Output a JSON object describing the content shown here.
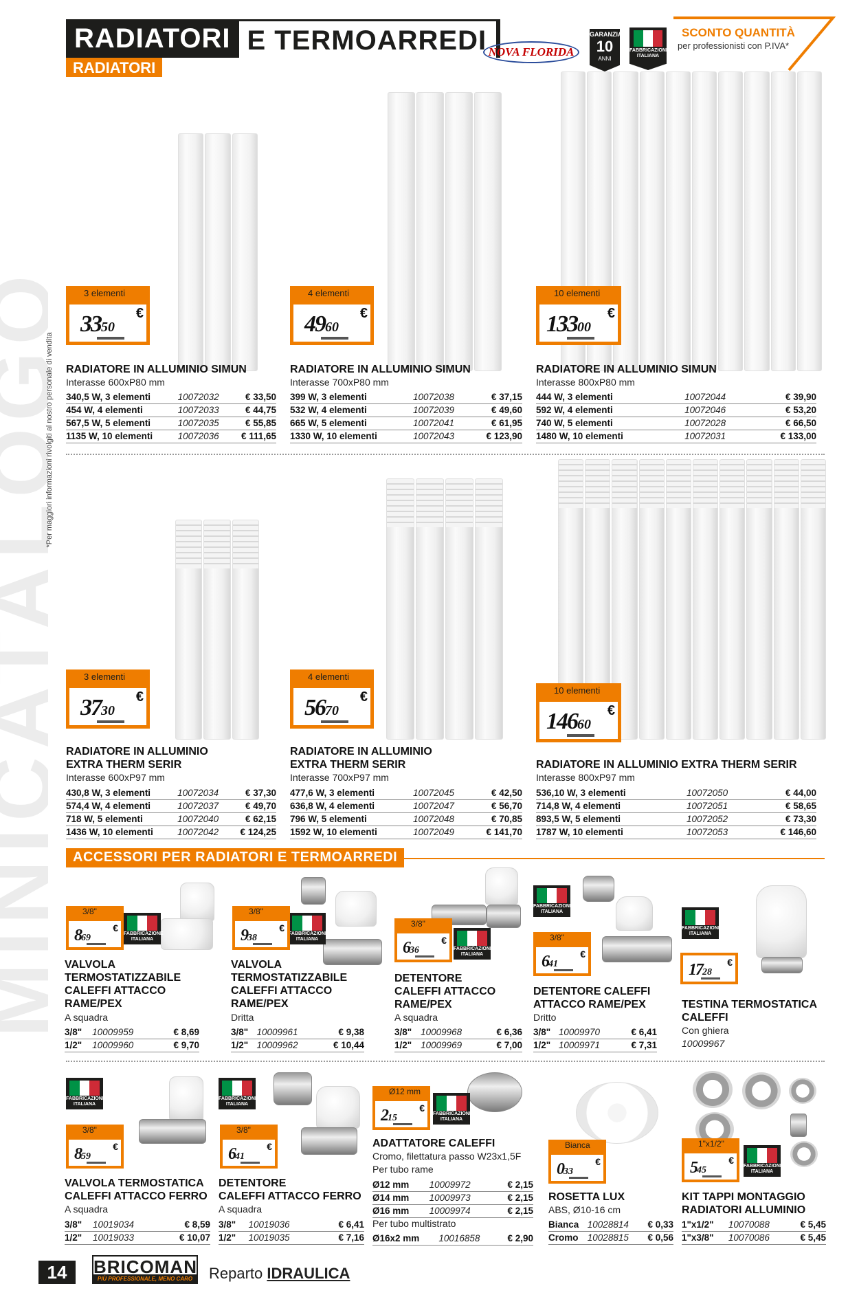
{
  "header": {
    "title_a": "RADIATORI",
    "title_b": "E TERMOARREDI",
    "subtitle": "RADIATORI",
    "brand": "NOVA FLORIDA",
    "guarantee": {
      "top": "GARANZIA",
      "num": "10",
      "bottom": "ANNI"
    },
    "made_in": "FABBRICAZIONE ITALIANA",
    "discount_title": "SCONTO QUANTITÀ",
    "discount_note": "per professionisti con P.IVA*"
  },
  "side_note": "*Per maggiori informazioni rivolgiti al nostro personale di vendita",
  "watermark": "MINICATALOGO",
  "radiators": [
    {
      "tag_label": "3 elementi",
      "price_int": "33",
      "price_dec": "50",
      "title": [
        "RADIATORE IN ALLUMINIO SIMUN"
      ],
      "sub": "Interasse 600xP80 mm",
      "rows": [
        [
          "340,5 W, 3 elementi",
          "10072032",
          "€ 33,50"
        ],
        [
          "454 W, 4 elementi",
          "10072033",
          "€ 44,75"
        ],
        [
          "567,5 W, 5 elementi",
          "10072035",
          "€ 55,85"
        ],
        [
          "1135 W, 10 elementi",
          "10072036",
          "€ 111,65"
        ]
      ]
    },
    {
      "tag_label": "4 elementi",
      "price_int": "49",
      "price_dec": "60",
      "title": [
        "RADIATORE IN ALLUMINIO SIMUN"
      ],
      "sub": "Interasse 700xP80 mm",
      "rows": [
        [
          "399 W, 3 elementi",
          "10072038",
          "€ 37,15"
        ],
        [
          "532 W, 4 elementi",
          "10072039",
          "€ 49,60"
        ],
        [
          "665 W, 5 elementi",
          "10072041",
          "€ 61,95"
        ],
        [
          "1330 W, 10 elementi",
          "10072043",
          "€ 123,90"
        ]
      ]
    },
    {
      "tag_label": "10 elementi",
      "price_int": "133",
      "price_dec": "00",
      "title": [
        "RADIATORE IN ALLUMINIO SIMUN"
      ],
      "sub": "Interasse 800xP80 mm",
      "rows": [
        [
          "444 W, 3 elementi",
          "10072044",
          "€ 39,90"
        ],
        [
          "592 W, 4 elementi",
          "10072046",
          "€ 53,20"
        ],
        [
          "740 W, 5 elementi",
          "10072028",
          "€ 66,50"
        ],
        [
          "1480 W, 10 elementi",
          "10072031",
          "€ 133,00"
        ]
      ]
    },
    {
      "tag_label": "3 elementi",
      "price_int": "37",
      "price_dec": "30",
      "title": [
        "RADIATORE IN ALLUMINIO",
        "EXTRA THERM SERIR"
      ],
      "sub": "Interasse 600xP97 mm",
      "rows": [
        [
          "430,8 W, 3 elementi",
          "10072034",
          "€ 37,30"
        ],
        [
          "574,4 W, 4 elementi",
          "10072037",
          "€ 49,70"
        ],
        [
          "718 W, 5 elementi",
          "10072040",
          "€ 62,15"
        ],
        [
          "1436 W, 10 elementi",
          "10072042",
          "€ 124,25"
        ]
      ]
    },
    {
      "tag_label": "4 elementi",
      "price_int": "56",
      "price_dec": "70",
      "title": [
        "RADIATORE IN ALLUMINIO",
        "EXTRA THERM SERIR"
      ],
      "sub": "Interasse 700xP97 mm",
      "rows": [
        [
          "477,6 W, 3 elementi",
          "10072045",
          "€ 42,50"
        ],
        [
          "636,8 W, 4 elementi",
          "10072047",
          "€ 56,70"
        ],
        [
          "796 W, 5 elementi",
          "10072048",
          "€ 70,85"
        ],
        [
          "1592 W, 10 elementi",
          "10072049",
          "€ 141,70"
        ]
      ]
    },
    {
      "tag_label": "10 elementi",
      "price_int": "146",
      "price_dec": "60",
      "title": [
        "RADIATORE IN ALLUMINIO EXTRA THERM SERIR"
      ],
      "sub": "Interasse 800xP97 mm",
      "rows": [
        [
          "536,10 W, 3 elementi",
          "10072050",
          "€ 44,00"
        ],
        [
          "714,8 W, 4 elementi",
          "10072051",
          "€ 58,65"
        ],
        [
          "893,5 W, 5 elementi",
          "10072052",
          "€ 73,30"
        ],
        [
          "1787 W, 10 elementi",
          "10072053",
          "€ 146,60"
        ]
      ]
    }
  ],
  "accessories_title": "ACCESSORI PER RADIATORI E TERMOARREDI",
  "accessories": [
    {
      "tag_label": "3/8\"",
      "price_int": "8",
      "price_dec": "69",
      "title": [
        "VALVOLA",
        "TERMOSTATIZZABILE",
        "CALEFFI ATTACCO",
        "RAME/PEX"
      ],
      "sub": [
        "A squadra"
      ],
      "rows": [
        [
          "3/8\"",
          "10009959",
          "€ 8,69"
        ],
        [
          "1/2\"",
          "10009960",
          "€ 9,70"
        ]
      ]
    },
    {
      "tag_label": "3/8\"",
      "price_int": "9",
      "price_dec": "38",
      "title": [
        "VALVOLA",
        "TERMOSTATIZZABILE",
        "CALEFFI ATTACCO",
        "RAME/PEX"
      ],
      "sub": [
        "Dritta"
      ],
      "rows": [
        [
          "3/8\"",
          "10009961",
          "€ 9,38"
        ],
        [
          "1/2\"",
          "10009962",
          "€ 10,44"
        ]
      ]
    },
    {
      "tag_label": "3/8\"",
      "price_int": "6",
      "price_dec": "36",
      "title": [
        "DETENTORE",
        "CALEFFI ATTACCO",
        "RAME/PEX"
      ],
      "sub": [
        "A squadra"
      ],
      "rows": [
        [
          "3/8\"",
          "10009968",
          "€ 6,36"
        ],
        [
          "1/2\"",
          "10009969",
          "€ 7,00"
        ]
      ]
    },
    {
      "tag_label": "3/8\"",
      "price_int": "6",
      "price_dec": "41",
      "title": [
        "DETENTORE CALEFFI",
        "ATTACCO RAME/PEX"
      ],
      "sub": [
        "Dritto"
      ],
      "rows": [
        [
          "3/8\"",
          "10009970",
          "€ 6,41"
        ],
        [
          "1/2\"",
          "10009971",
          "€ 7,31"
        ]
      ]
    },
    {
      "tag_label": "",
      "price_int": "17",
      "price_dec": "28",
      "title": [
        "TESTINA TERMOSTATICA",
        "CALEFFI"
      ],
      "sub": [
        "Con ghiera",
        "10009967"
      ],
      "rows": []
    },
    {
      "tag_label": "3/8\"",
      "price_int": "8",
      "price_dec": "59",
      "title": [
        "VALVOLA TERMOSTATICA",
        "CALEFFI ATTACCO FERRO"
      ],
      "sub": [
        "A squadra"
      ],
      "rows": [
        [
          "3/8\"",
          "10019034",
          "€ 8,59"
        ],
        [
          "1/2\"",
          "10019033",
          "€ 10,07"
        ]
      ]
    },
    {
      "tag_label": "3/8\"",
      "price_int": "6",
      "price_dec": "41",
      "title": [
        "DETENTORE",
        "CALEFFI ATTACCO FERRO"
      ],
      "sub": [
        "A squadra"
      ],
      "rows": [
        [
          "3/8\"",
          "10019036",
          "€ 6,41"
        ],
        [
          "1/2\"",
          "10019035",
          "€ 7,16"
        ]
      ]
    },
    {
      "tag_label": "Ø12 mm",
      "price_int": "2",
      "price_dec": "15",
      "title": [
        "ADATTATORE CALEFFI"
      ],
      "sub": [
        "Cromo, filettatura passo W23x1,5F",
        "Per tubo rame"
      ],
      "rows": [
        [
          "Ø12 mm",
          "10009972",
          "€ 2,15"
        ],
        [
          "Ø14 mm",
          "10009973",
          "€ 2,15"
        ],
        [
          "Ø16 mm",
          "10009974",
          "€ 2,15"
        ]
      ],
      "sub2": "Per tubo multistrato",
      "rows2": [
        [
          "Ø16x2 mm",
          "10016858",
          "€ 2,90"
        ]
      ]
    },
    {
      "tag_label": "Bianca",
      "price_int": "0",
      "price_dec": "33",
      "title": [
        "ROSETTA LUX"
      ],
      "sub": [
        "ABS, Ø10-16 cm"
      ],
      "rows": [
        [
          "Bianca",
          "10028814",
          "€ 0,33"
        ],
        [
          "Cromo",
          "10028815",
          "€ 0,56"
        ]
      ]
    },
    {
      "tag_label": "1\"x1/2\"",
      "price_int": "5",
      "price_dec": "45",
      "title": [
        "KIT TAPPI MONTAGGIO",
        "RADIATORI ALLUMINIO"
      ],
      "sub": [],
      "rows": [
        [
          "1\"x1/2\"",
          "10070088",
          "€ 5,45"
        ],
        [
          "1\"x3/8\"",
          "10070086",
          "€ 5,45"
        ]
      ]
    }
  ],
  "footer": {
    "page": "14",
    "logo": "BRICOMAN",
    "logo_tagline": "PIÙ PROFESSIONALE, MENO CARO",
    "reparto_label": "Reparto",
    "reparto_value": "IDRAULICA"
  }
}
